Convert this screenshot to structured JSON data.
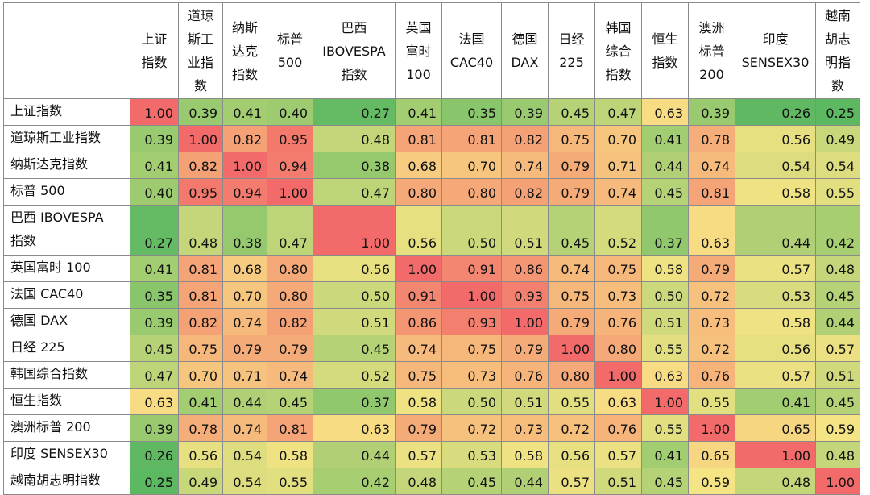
{
  "chart_data": {
    "type": "heatmap",
    "title": "",
    "columns": [
      [
        "上证",
        "指数"
      ],
      [
        "道琼",
        "斯工",
        "业指",
        "数"
      ],
      [
        "纳斯",
        "达克",
        "指数"
      ],
      [
        "标普",
        "500"
      ],
      [
        "巴西",
        "IBOVESPA",
        "指数"
      ],
      [
        "英国",
        "富时",
        "100"
      ],
      [
        "法国",
        "CAC40"
      ],
      [
        "德国",
        "DAX"
      ],
      [
        "日经",
        "225"
      ],
      [
        "韩国",
        "综合",
        "指数"
      ],
      [
        "恒生",
        "指数"
      ],
      [
        "澳洲",
        "标普",
        "200"
      ],
      [
        "印度",
        "SENSEX30"
      ],
      [
        "越南",
        "胡志",
        "明指",
        "数"
      ]
    ],
    "rows": [
      [
        "上证指数"
      ],
      [
        "道琼斯工业指数"
      ],
      [
        "纳斯达克指数"
      ],
      [
        "标普 500"
      ],
      [
        "巴西 IBOVESPA",
        "指数"
      ],
      [
        "英国富时 100"
      ],
      [
        "法国 CAC40"
      ],
      [
        "德国 DAX"
      ],
      [
        "日经 225"
      ],
      [
        "韩国综合指数"
      ],
      [
        "恒生指数"
      ],
      [
        "澳洲标普 200"
      ],
      [
        "印度 SENSEX30"
      ],
      [
        "越南胡志明指数"
      ]
    ],
    "values": [
      [
        "1.00",
        "0.39",
        "0.41",
        "0.40",
        "0.27",
        "0.41",
        "0.35",
        "0.39",
        "0.45",
        "0.47",
        "0.63",
        "0.39",
        "0.26",
        "0.25"
      ],
      [
        "0.39",
        "1.00",
        "0.82",
        "0.95",
        "0.48",
        "0.81",
        "0.81",
        "0.82",
        "0.75",
        "0.70",
        "0.41",
        "0.78",
        "0.56",
        "0.49"
      ],
      [
        "0.41",
        "0.82",
        "1.00",
        "0.94",
        "0.38",
        "0.68",
        "0.70",
        "0.74",
        "0.79",
        "0.71",
        "0.44",
        "0.74",
        "0.54",
        "0.54"
      ],
      [
        "0.40",
        "0.95",
        "0.94",
        "1.00",
        "0.47",
        "0.80",
        "0.80",
        "0.82",
        "0.79",
        "0.74",
        "0.45",
        "0.81",
        "0.58",
        "0.55"
      ],
      [
        "0.27",
        "0.48",
        "0.38",
        "0.47",
        "1.00",
        "0.56",
        "0.50",
        "0.51",
        "0.45",
        "0.52",
        "0.37",
        "0.63",
        "0.44",
        "0.42"
      ],
      [
        "0.41",
        "0.81",
        "0.68",
        "0.80",
        "0.56",
        "1.00",
        "0.91",
        "0.86",
        "0.74",
        "0.75",
        "0.58",
        "0.79",
        "0.57",
        "0.48"
      ],
      [
        "0.35",
        "0.81",
        "0.70",
        "0.80",
        "0.50",
        "0.91",
        "1.00",
        "0.93",
        "0.75",
        "0.73",
        "0.50",
        "0.72",
        "0.53",
        "0.45"
      ],
      [
        "0.39",
        "0.82",
        "0.74",
        "0.82",
        "0.51",
        "0.86",
        "0.93",
        "1.00",
        "0.79",
        "0.76",
        "0.51",
        "0.73",
        "0.58",
        "0.44"
      ],
      [
        "0.45",
        "0.75",
        "0.79",
        "0.79",
        "0.45",
        "0.74",
        "0.75",
        "0.79",
        "1.00",
        "0.80",
        "0.55",
        "0.72",
        "0.56",
        "0.57"
      ],
      [
        "0.47",
        "0.70",
        "0.71",
        "0.74",
        "0.52",
        "0.75",
        "0.73",
        "0.76",
        "0.80",
        "1.00",
        "0.63",
        "0.76",
        "0.57",
        "0.51"
      ],
      [
        "0.63",
        "0.41",
        "0.44",
        "0.45",
        "0.37",
        "0.58",
        "0.50",
        "0.51",
        "0.55",
        "0.63",
        "1.00",
        "0.55",
        "0.41",
        "0.45"
      ],
      [
        "0.39",
        "0.78",
        "0.74",
        "0.81",
        "0.63",
        "0.79",
        "0.72",
        "0.73",
        "0.72",
        "0.76",
        "0.55",
        "1.00",
        "0.65",
        "0.59"
      ],
      [
        "0.26",
        "0.56",
        "0.54",
        "0.58",
        "0.44",
        "0.57",
        "0.53",
        "0.58",
        "0.56",
        "0.57",
        "0.41",
        "0.65",
        "1.00",
        "0.48"
      ],
      [
        "0.25",
        "0.49",
        "0.54",
        "0.55",
        "0.42",
        "0.48",
        "0.45",
        "0.44",
        "0.57",
        "0.51",
        "0.45",
        "0.59",
        "0.48",
        "1.00"
      ]
    ],
    "color_scale": {
      "low": "#5cb861",
      "mid": "#f8e585",
      "high": "#f26a6a"
    }
  }
}
